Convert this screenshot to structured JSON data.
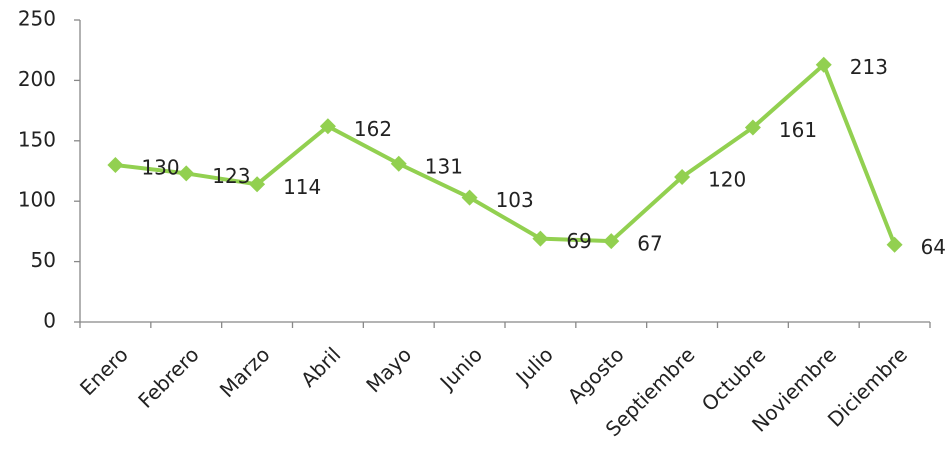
{
  "chart_data": {
    "type": "line",
    "categories": [
      "Enero",
      "Febrero",
      "Marzo",
      "Abril",
      "Mayo",
      "Junio",
      "Julio",
      "Agosto",
      "Septiembre",
      "Octubre",
      "Noviembre",
      "Diciembre"
    ],
    "series": [
      {
        "color": "#92d050",
        "values": [
          130,
          123,
          114,
          162,
          131,
          103,
          69,
          67,
          120,
          161,
          213,
          64
        ]
      }
    ],
    "ylim": [
      0,
      250
    ],
    "yticks": [
      0,
      50,
      100,
      150,
      200,
      250
    ],
    "grid": false
  }
}
